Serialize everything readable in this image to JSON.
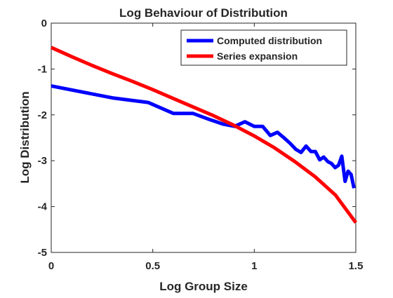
{
  "chart_data": {
    "type": "line",
    "title": "Log Behaviour of Distribution",
    "xlabel": "Log Group Size",
    "ylabel": "Log Distribution",
    "xlim": [
      0,
      1.5
    ],
    "ylim": [
      -5,
      0
    ],
    "xticks": [
      0,
      0.5,
      1,
      1.5
    ],
    "xtick_labels": [
      "0",
      "0.5",
      "1",
      "1.5"
    ],
    "yticks": [
      0,
      -1,
      -2,
      -3,
      -4,
      -5
    ],
    "ytick_labels": [
      "0",
      "-1",
      "-2",
      "-3",
      "-4",
      "-5"
    ],
    "grid": false,
    "legend_position": "top-right",
    "series": [
      {
        "name": "Computed distribution",
        "color": "#0000ff",
        "x": [
          0,
          0.301,
          0.477,
          0.602,
          0.699,
          0.778,
          0.845,
          0.903,
          0.954,
          1.0,
          1.041,
          1.079,
          1.114,
          1.146,
          1.176,
          1.204,
          1.23,
          1.255,
          1.279,
          1.301,
          1.322,
          1.342,
          1.362,
          1.38,
          1.398,
          1.415,
          1.431,
          1.447,
          1.462,
          1.477,
          1.491
        ],
        "y": [
          -1.37,
          -1.63,
          -1.73,
          -1.97,
          -1.97,
          -2.1,
          -2.2,
          -2.25,
          -2.15,
          -2.25,
          -2.25,
          -2.45,
          -2.38,
          -2.5,
          -2.62,
          -2.75,
          -2.82,
          -2.68,
          -2.8,
          -2.8,
          -2.98,
          -2.92,
          -3.02,
          -3.06,
          -3.15,
          -3.1,
          -2.9,
          -3.45,
          -3.23,
          -3.3,
          -3.6
        ]
      },
      {
        "name": "Series expansion",
        "color": "#ff0000",
        "x": [
          0,
          0.1,
          0.2,
          0.3,
          0.4,
          0.5,
          0.6,
          0.7,
          0.8,
          0.9,
          1.0,
          1.1,
          1.2,
          1.3,
          1.4,
          1.5
        ],
        "y": [
          -0.53,
          -0.73,
          -0.92,
          -1.1,
          -1.27,
          -1.45,
          -1.64,
          -1.83,
          -2.02,
          -2.23,
          -2.46,
          -2.72,
          -3.02,
          -3.35,
          -3.75,
          -4.35
        ]
      }
    ]
  }
}
